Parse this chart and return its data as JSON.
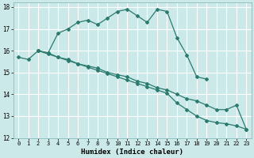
{
  "xlabel": "Humidex (Indice chaleur)",
  "xlim": [
    -0.5,
    23.5
  ],
  "ylim": [
    12,
    18.2
  ],
  "yticks": [
    12,
    13,
    14,
    15,
    16,
    17,
    18
  ],
  "xticks": [
    0,
    1,
    2,
    3,
    4,
    5,
    6,
    7,
    8,
    9,
    10,
    11,
    12,
    13,
    14,
    15,
    16,
    17,
    18,
    19,
    20,
    21,
    22,
    23
  ],
  "bg_color": "#cce9e9",
  "grid_color": "#b0d8d8",
  "line_color": "#2a7a6e",
  "line1_x": [
    0,
    1,
    2,
    3,
    4,
    5,
    6,
    7,
    8,
    9,
    10,
    11,
    12,
    13,
    14,
    15,
    16,
    17,
    18,
    19
  ],
  "line1_y": [
    15.7,
    15.6,
    16.0,
    15.9,
    16.8,
    17.0,
    17.3,
    17.4,
    17.2,
    17.5,
    17.8,
    17.9,
    17.6,
    17.3,
    17.9,
    17.8,
    16.6,
    15.8,
    14.8,
    14.7
  ],
  "line2_x": [
    2,
    3,
    4,
    5,
    6,
    7,
    8,
    9,
    10,
    11,
    12,
    13,
    14,
    15,
    16,
    17,
    18,
    19,
    20,
    21,
    22,
    23
  ],
  "line2_y": [
    16.0,
    15.9,
    15.7,
    15.6,
    15.4,
    15.3,
    15.2,
    15.0,
    14.9,
    14.8,
    14.6,
    14.5,
    14.3,
    14.2,
    14.0,
    13.8,
    13.7,
    13.5,
    13.3,
    13.3,
    13.5,
    12.4
  ],
  "line3_x": [
    2,
    3,
    4,
    5,
    6,
    7,
    8,
    9,
    10,
    11,
    12,
    13,
    14,
    15,
    16,
    17,
    18,
    19,
    20,
    21,
    22,
    23
  ],
  "line3_y": [
    16.0,
    15.85,
    15.7,
    15.55,
    15.4,
    15.25,
    15.1,
    14.95,
    14.8,
    14.65,
    14.5,
    14.35,
    14.2,
    14.05,
    13.6,
    13.3,
    13.0,
    12.8,
    12.7,
    12.65,
    12.55,
    12.4
  ]
}
